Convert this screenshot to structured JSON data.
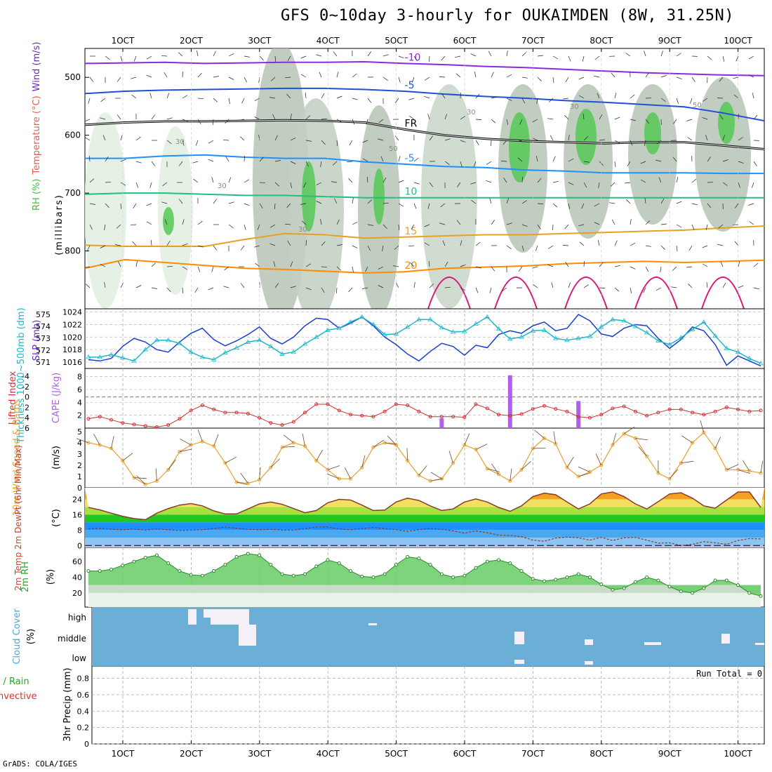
{
  "title": "GFS 0~10day 3-hourly for OUKAIMDEN (8W, 31.25N)",
  "credit": "GrADS: COLA/IGES",
  "x_ticks": [
    "1OCT",
    "2OCT",
    "3OCT",
    "4OCT",
    "5OCT",
    "6OCT",
    "7OCT",
    "8OCT",
    "9OCT",
    "10OCT"
  ],
  "colors": {
    "grid": "#999999",
    "cloud_blue": "#6baed6",
    "rh_green_light": "#e6f2e6",
    "rh_gray": "#9aa89a",
    "rh_green": "#55c855"
  },
  "chart_data": [
    {
      "type": "contour",
      "panel": "upper-air",
      "ylabel_parts": [
        "RH (%)",
        "Temperature (°C)",
        "Wind (m/s)"
      ],
      "ylabel2": "(millibars)",
      "ytick_labels": [
        "500",
        "600",
        "700",
        "800"
      ],
      "ylim": [
        900,
        450
      ],
      "isotherms": [
        {
          "label": "-10",
          "color": "#8a2be2",
          "values": [
            476,
            475,
            474,
            476,
            475,
            474,
            474,
            473,
            476,
            478,
            481,
            483,
            486,
            489,
            492,
            494,
            496,
            497
          ]
        },
        {
          "label": "-5",
          "color": "#2050d8",
          "values": [
            528,
            524,
            522,
            521,
            520,
            519,
            519,
            521,
            524,
            529,
            533,
            536,
            540,
            543,
            547,
            551,
            562,
            575
          ]
        },
        {
          "label": "FR",
          "color": "#000000",
          "values": [
            582,
            578,
            576,
            576,
            575,
            574,
            575,
            578,
            590,
            600,
            606,
            610,
            612,
            614,
            612,
            612,
            618,
            624
          ]
        },
        {
          "label": "-5",
          "color": "#1e90ff",
          "values": [
            640,
            640,
            636,
            634,
            638,
            640,
            640,
            646,
            650,
            654,
            656,
            660,
            662,
            665,
            665,
            665,
            666,
            666
          ]
        },
        {
          "label": "10",
          "color": "#20c080",
          "values": [
            702,
            700,
            700,
            702,
            704,
            704,
            706,
            708,
            708,
            708,
            708,
            708,
            708,
            708,
            708,
            708,
            708,
            708
          ]
        },
        {
          "label": "15",
          "color": "#e8a020",
          "values": [
            790,
            792,
            792,
            792,
            780,
            770,
            772,
            778,
            776,
            774,
            772,
            772,
            770,
            768,
            766,
            764,
            760,
            757
          ]
        },
        {
          "label": "20",
          "color": "#ff8c00",
          "values": [
            830,
            815,
            820,
            825,
            830,
            832,
            835,
            838,
            836,
            830,
            828,
            826,
            822,
            820,
            818,
            820,
            818,
            816
          ]
        }
      ],
      "contour_labels": [
        "30",
        "30",
        "30",
        "30",
        "50",
        "50",
        "30"
      ]
    },
    {
      "type": "line",
      "panel": "thickness-slp",
      "ylabel_left": "Thickness 1000~500mb (dm)",
      "ylabel_right": "SLP (mb)",
      "ytick_labels_left": [
        "571",
        "572",
        "573",
        "574",
        "575"
      ],
      "ytick_labels_right": [
        "1016",
        "1018",
        "1020",
        "1022",
        "1024"
      ],
      "ylim_slp": [
        1015,
        1024.5
      ],
      "series": [
        {
          "name": "SLP",
          "color": "#1a3fcc",
          "values": [
            1016.4,
            1016.2,
            1016.6,
            1018.5,
            1019.8,
            1019.2,
            1018.0,
            1017.6,
            1019.2,
            1020.6,
            1021.4,
            1019.6,
            1018.6,
            1019.4,
            1020.4,
            1021.6,
            1019.8,
            1018.9,
            1020.0,
            1021.8,
            1023.0,
            1022.8,
            1021.4,
            1022.2,
            1023.2,
            1021.8,
            1020.0,
            1018.8,
            1017.3,
            1016.2,
            1017.7,
            1019.0,
            1018.5,
            1017.1,
            1018.7,
            1018.3,
            1020.4,
            1021.0,
            1020.6,
            1021.8,
            1022.4,
            1021.0,
            1021.4,
            1023.6,
            1022.6,
            1020.5,
            1020.1,
            1021.4,
            1022.0,
            1021.8,
            1019.8,
            1018.2,
            1019.6,
            1021.6,
            1021.0,
            1018.8,
            1015.5,
            1017.0,
            1016.2,
            1015.4
          ]
        },
        {
          "name": "Thickness",
          "color": "#20b8c8",
          "values": [
            1016.8,
            1016.8,
            1017.2,
            1016.7,
            1016.2,
            1018.0,
            1019.5,
            1019.5,
            1019.0,
            1017.6,
            1016.8,
            1016.4,
            1017.5,
            1018.3,
            1019.2,
            1019.5,
            1018.5,
            1017.3,
            1017.6,
            1018.9,
            1020.0,
            1021.1,
            1021.4,
            1022.4,
            1023.2,
            1022.0,
            1020.4,
            1020.5,
            1021.6,
            1022.8,
            1022.8,
            1021.5,
            1020.8,
            1020.9,
            1022.1,
            1023.2,
            1021.3,
            1019.7,
            1020.0,
            1021.0,
            1021.1,
            1019.8,
            1019.5,
            1019.8,
            1020.1,
            1021.6,
            1022.8,
            1022.6,
            1021.7,
            1020.7,
            1019.4,
            1018.8,
            1019.9,
            1021.2,
            1022.4,
            1020.2,
            1018.2,
            1017.6,
            1016.6,
            1015.8
          ]
        }
      ]
    },
    {
      "type": "line",
      "panel": "lifted-index-cape",
      "ylabel_left": "Lifted Index",
      "ylabel_right": "CAPE (J/kg)",
      "ytick_labels_left": [
        "6",
        "4",
        "2",
        "0",
        "-2",
        "-4"
      ],
      "ytick_labels_right": [
        "2",
        "4",
        "6",
        "8"
      ],
      "ylim_li": [
        6,
        -5.5
      ],
      "series": [
        {
          "name": "Lifted Index",
          "color": "#d03030",
          "values": [
            4.2,
            3.8,
            4.4,
            5.0,
            5.3,
            5.6,
            5.8,
            5.4,
            4.2,
            2.6,
            1.6,
            2.4,
            3.0,
            3.0,
            3.2,
            4.0,
            5.0,
            5.4,
            4.8,
            3.0,
            1.4,
            1.4,
            2.6,
            3.4,
            3.6,
            3.8,
            2.8,
            1.4,
            1.6,
            2.8,
            3.8,
            3.8,
            3.8,
            3.9,
            1.4,
            2.2,
            3.4,
            3.6,
            3.3,
            2.3,
            1.7,
            2.3,
            2.8,
            3.8,
            4.0,
            3.4,
            2.2,
            1.8,
            2.8,
            3.6,
            3.0,
            2.4,
            2.4,
            3.0,
            3.4,
            2.8,
            2.0,
            2.4,
            2.8,
            2.6
          ]
        }
      ],
      "cape_bars": [
        {
          "index": 31,
          "value": 1.5
        },
        {
          "index": 37,
          "value": 8.2
        },
        {
          "index": 43,
          "value": 4.2
        }
      ],
      "zero_line": 0
    },
    {
      "type": "line",
      "panel": "wind-10m",
      "ylabel": "10m Wind Speed & Barbs",
      "yunit": "(m/s)",
      "ytick_labels": [
        "0",
        "1",
        "2",
        "3",
        "4",
        "5"
      ],
      "ylim": [
        0,
        5.3
      ],
      "series": [
        {
          "name": "Speed",
          "color": "#e8a030",
          "values": [
            4.0,
            3.8,
            3.5,
            2.4,
            0.9,
            0.3,
            0.6,
            1.6,
            3.2,
            3.8,
            4.1,
            3.7,
            2.2,
            0.5,
            0.4,
            0.7,
            1.8,
            3.6,
            4.0,
            3.7,
            2.4,
            1.6,
            0.8,
            0.8,
            1.8,
            3.6,
            4.0,
            3.8,
            2.4,
            1.1,
            0.6,
            0.8,
            2.2,
            3.8,
            3.4,
            1.7,
            1.2,
            0.6,
            1.6,
            3.5,
            4.4,
            3.9,
            1.8,
            1.0,
            1.4,
            2.0,
            3.8,
            4.8,
            4.4,
            2.8,
            1.3,
            0.8,
            2.2,
            4.0,
            4.9,
            3.5,
            1.6,
            1.6,
            1.5,
            1.3
          ]
        }
      ]
    },
    {
      "type": "area",
      "panel": "temperature-2m",
      "ylabel": "2m Temp 2m DewPt (6hr Min/Max)",
      "yunit": "(°C)",
      "ytick_labels": [
        "0",
        "8",
        "16",
        "24"
      ],
      "ylim": [
        -1,
        30
      ],
      "series": [
        {
          "name": "2m Temp",
          "color": "#8b3a2a",
          "values": [
            19.8,
            18.5,
            16.8,
            15.2,
            14.0,
            13.4,
            16.8,
            19.2,
            21.0,
            21.8,
            20.6,
            18.0,
            16.4,
            16.4,
            19.0,
            21.6,
            22.6,
            21.4,
            19.2,
            17.0,
            18.2,
            22.2,
            24.0,
            23.6,
            21.0,
            18.2,
            18.4,
            22.6,
            24.6,
            23.4,
            20.6,
            18.2,
            19.0,
            22.6,
            24.2,
            22.6,
            19.8,
            17.8,
            20.6,
            25.4,
            27.2,
            26.4,
            22.6,
            19.0,
            21.6,
            26.8,
            27.8,
            25.4,
            21.6,
            19.0,
            22.8,
            26.8,
            27.4,
            24.6,
            20.6,
            19.4,
            23.6,
            27.8,
            27.8,
            19.8
          ]
        },
        {
          "name": "2m DewPt",
          "color": "#8b3a2a",
          "values": [
            8.6,
            9.0,
            8.4,
            8.2,
            8.6,
            8.0,
            8.6,
            8.2,
            7.8,
            8.0,
            8.2,
            8.8,
            9.6,
            9.0,
            8.4,
            8.2,
            8.4,
            8.0,
            8.0,
            8.8,
            9.6,
            9.6,
            8.6,
            8.2,
            8.8,
            9.4,
            8.8,
            8.2,
            7.4,
            8.2,
            8.8,
            8.4,
            7.6,
            6.4,
            7.6,
            6.6,
            5.4,
            5.2,
            4.6,
            2.8,
            2.2,
            3.8,
            4.4,
            4.0,
            2.8,
            4.2,
            2.6,
            4.0,
            4.2,
            2.8,
            1.2,
            1.4,
            0.0,
            0.6,
            2.0,
            1.4,
            0.6,
            2.6,
            3.6,
            3.4
          ]
        }
      ]
    },
    {
      "type": "area",
      "panel": "rh-2m",
      "ylabel": "2m RH",
      "yunit": "(%)",
      "ytick_labels": [
        "20",
        "40",
        "60"
      ],
      "ylim": [
        2,
        78
      ],
      "series": [
        {
          "name": "2m RH",
          "values": [
            48,
            48,
            50,
            55,
            60,
            65,
            68,
            58,
            48,
            43,
            42,
            48,
            56,
            66,
            70,
            68,
            56,
            44,
            42,
            44,
            54,
            62,
            58,
            48,
            41,
            40,
            44,
            56,
            66,
            64,
            56,
            44,
            40,
            42,
            52,
            60,
            62,
            58,
            48,
            38,
            35,
            37,
            40,
            44,
            40,
            31,
            24,
            26,
            34,
            40,
            36,
            28,
            22,
            20,
            26,
            36,
            36,
            30,
            20,
            16
          ]
        }
      ]
    },
    {
      "type": "bar",
      "panel": "cloud-cover",
      "ylabel": "Cloud Cover",
      "yunit": "(%)",
      "ytick_labels": [
        "high",
        "middle",
        "low"
      ]
    },
    {
      "type": "bar",
      "panel": "precip",
      "ylabel_parts": [
        "Total / Rain",
        "Convective"
      ],
      "ylabel2": "3hr Precip (mm)",
      "ytick_labels": [
        "0",
        "0.2",
        "0.4",
        "0.6",
        "0.8"
      ],
      "ylim": [
        0,
        0.95
      ],
      "run_total": "Run Total = 0",
      "values": []
    }
  ]
}
